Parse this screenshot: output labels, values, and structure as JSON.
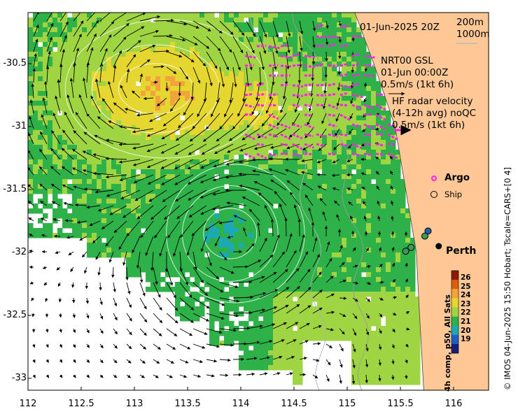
{
  "header": {
    "date_label": "01-Jun-2025 20Z",
    "depth_200": "200m",
    "depth_1000": "1000m"
  },
  "annotations": {
    "nrt_line1": "NRT00 GSL",
    "nrt_line2": "01-Jun 00:00Z",
    "nrt_line3": "0.5m/s (1kt 6h)",
    "hf_line1": "HF radar velocity",
    "hf_line2": "(4-12h avg) noQC",
    "hf_line3": "0.5m/s (1kt 6h)"
  },
  "legend": {
    "argo": "Argo",
    "ship": "Ship",
    "city": "Perth"
  },
  "side_labels": {
    "credit": "© IMOS 04-Jun-2025 15:50 Hobart; Tscale=CARS+[0 4]",
    "colorbar_title": "4h comp, p50, All Sats"
  },
  "axes": {
    "x_ticks": [
      "112",
      "112.5",
      "113",
      "113.5",
      "114",
      "114.5",
      "115",
      "115.5",
      "116"
    ],
    "y_ticks": [
      "-30.5",
      "-31",
      "-31.5",
      "-32",
      "-32.5",
      "-33"
    ]
  },
  "colorbar": {
    "labels": [
      "26",
      "25",
      "24",
      "23",
      "22",
      "21",
      "20",
      "19"
    ],
    "colors": [
      "#8b1a0a",
      "#d95f0e",
      "#f2a33a",
      "#e5d630",
      "#9fd442",
      "#2fb14a",
      "#1aa9b5",
      "#1e5fc6",
      "#14207a"
    ]
  },
  "chart_data": {
    "type": "heatmap",
    "title": "",
    "xlabel": "",
    "ylabel": "",
    "xlim": [
      112,
      116.3
    ],
    "ylim": [
      -33.1,
      -30
    ],
    "color_range": [
      19,
      26.5
    ],
    "features": {
      "warm_eddy_center": [
        113.2,
        -30.7
      ],
      "cool_eddy_center": [
        113.9,
        -31.85
      ],
      "coast_lon_at_lat": [
        [
          115.03,
          -30.0
        ],
        [
          115.25,
          -30.5
        ],
        [
          115.45,
          -31.0
        ],
        [
          115.55,
          -31.5
        ],
        [
          115.65,
          -32.0
        ],
        [
          115.68,
          -32.5
        ],
        [
          115.72,
          -33.1
        ]
      ]
    },
    "markers": [
      {
        "label": "Perth",
        "lon": 115.86,
        "lat": -31.95
      }
    ]
  },
  "colors": {
    "land": "#fdc796",
    "radar_vectors": "#ff22ee",
    "argo_marker": "#ff22ee"
  }
}
